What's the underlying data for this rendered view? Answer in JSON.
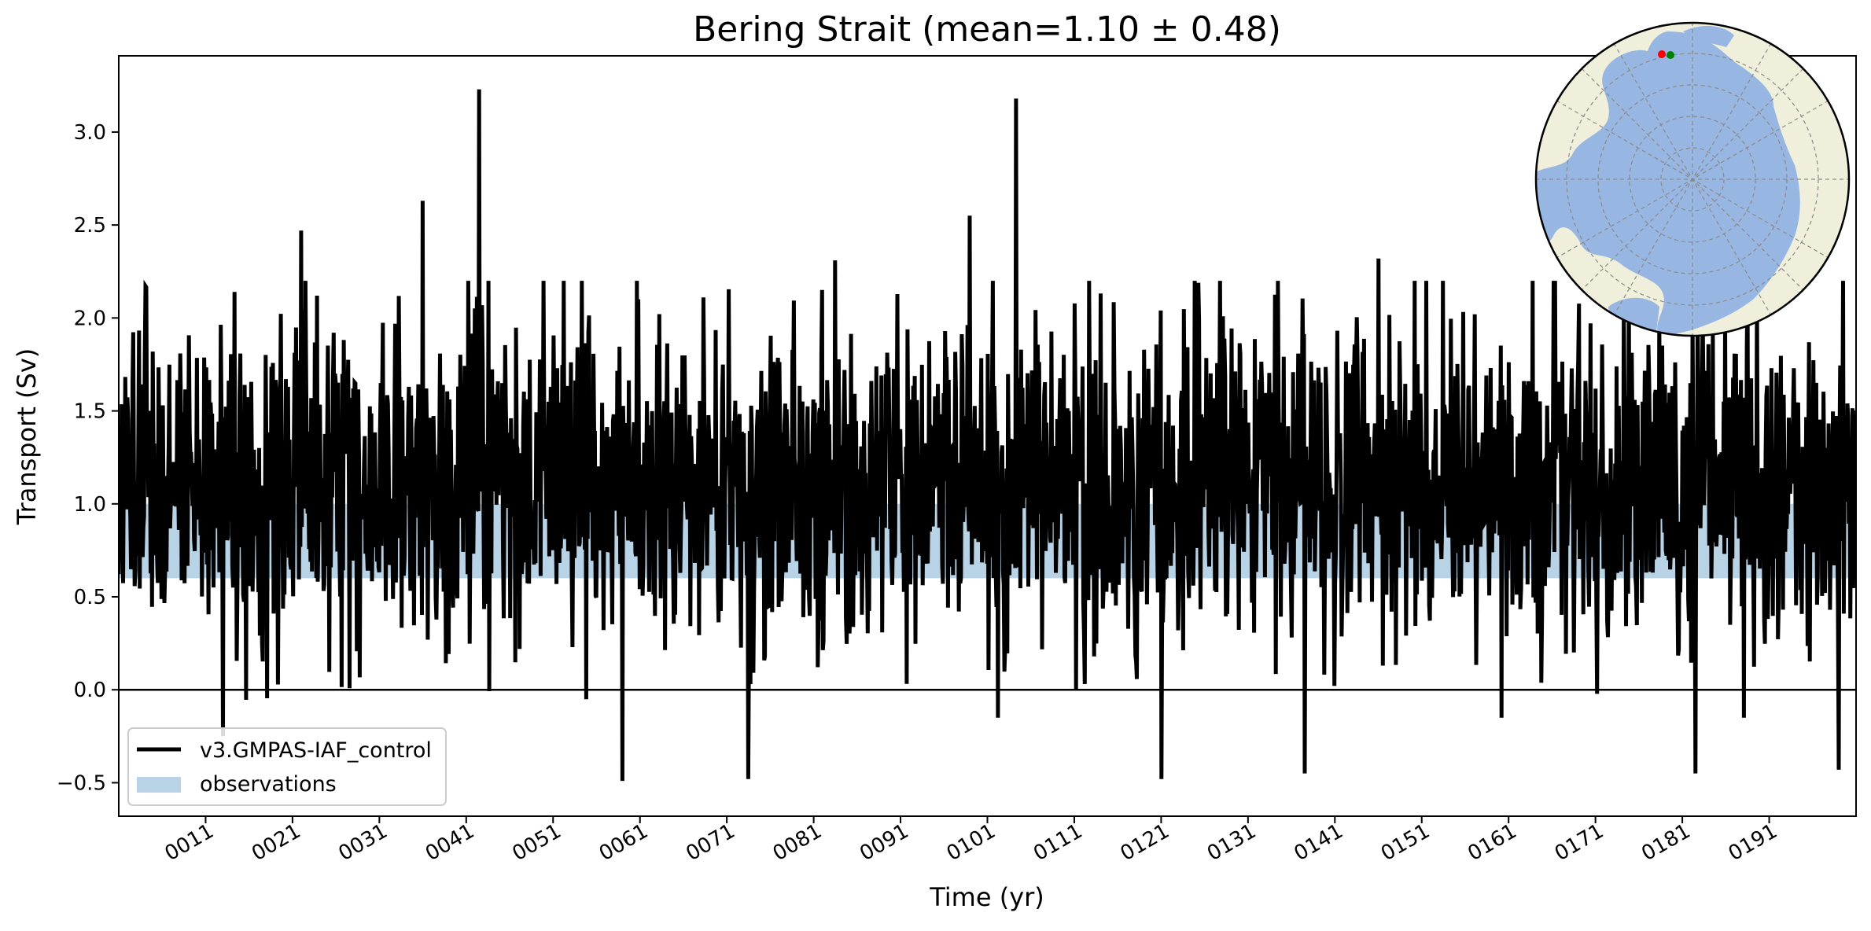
{
  "chart_data": {
    "type": "line",
    "title": "Bering Strait (mean=1.10 ± 0.48)",
    "xlabel": "Time (yr)",
    "ylabel": "Transport (Sv)",
    "xlim": [
      1,
      201
    ],
    "ylim": [
      -0.68,
      3.41
    ],
    "yticks": [
      -0.5,
      0.0,
      0.5,
      1.0,
      1.5,
      2.0,
      2.5,
      3.0
    ],
    "ytick_labels": [
      "−0.5",
      "0.0",
      "0.5",
      "1.0",
      "1.5",
      "2.0",
      "2.5",
      "3.0"
    ],
    "xticks": [
      11,
      21,
      31,
      41,
      51,
      61,
      71,
      81,
      91,
      101,
      111,
      121,
      131,
      141,
      151,
      161,
      171,
      181,
      191
    ],
    "xtick_labels": [
      "0011",
      "0021",
      "0031",
      "0041",
      "0051",
      "0061",
      "0071",
      "0081",
      "0091",
      "0101",
      "0111",
      "0121",
      "0131",
      "0141",
      "0151",
      "0161",
      "0171",
      "0181",
      "0191"
    ],
    "zero_line": 0.0,
    "observations_band": {
      "name": "observations",
      "ymin": 0.6,
      "ymax": 1.0,
      "color": "#b8d2e6"
    },
    "series": [
      {
        "name": "v3.GMPAS-IAF_control",
        "color": "#000000",
        "time_step": 0.0833,
        "approx_mean": 1.1,
        "approx_std": 0.48,
        "notable_extremes": [
          {
            "x": 42.5,
            "y": 3.23
          },
          {
            "x": 104.3,
            "y": 3.18
          },
          {
            "x": 36.0,
            "y": 2.63
          },
          {
            "x": 99.0,
            "y": 2.55
          },
          {
            "x": 22.0,
            "y": 2.47
          },
          {
            "x": 83.5,
            "y": 2.31
          },
          {
            "x": 146.0,
            "y": 2.32
          },
          {
            "x": 13.0,
            "y": -0.25
          },
          {
            "x": 59.0,
            "y": -0.49
          },
          {
            "x": 73.5,
            "y": -0.48
          },
          {
            "x": 121.0,
            "y": -0.48
          },
          {
            "x": 137.5,
            "y": -0.45
          },
          {
            "x": 182.5,
            "y": -0.45
          },
          {
            "x": 199.0,
            "y": -0.43
          }
        ]
      }
    ],
    "legend": {
      "location": "lower-left",
      "entries": [
        {
          "label": "v3.GMPAS-IAF_control",
          "kind": "line",
          "color": "#000000"
        },
        {
          "label": "observations",
          "kind": "patch",
          "color": "#b8d2e6"
        }
      ]
    },
    "inset_map": {
      "projection": "north-polar-stereographic",
      "ocean_color": "#97b6e1",
      "land_color": "#efefdb",
      "markers": [
        {
          "name": "section-start",
          "color": "#ff0000"
        },
        {
          "name": "section-end",
          "color": "#008000"
        }
      ]
    }
  }
}
